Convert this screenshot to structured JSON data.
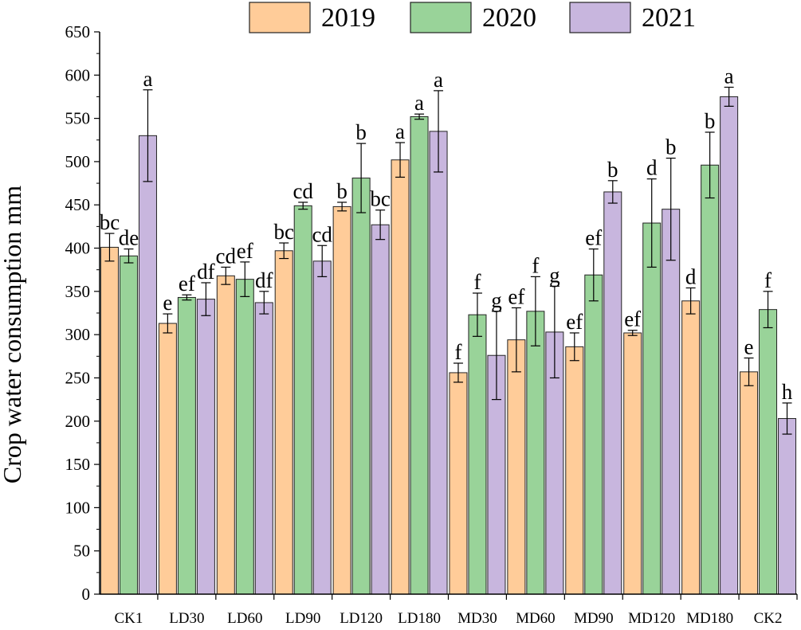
{
  "chart_data": {
    "type": "bar",
    "title": "",
    "xlabel": "",
    "ylabel": "Crop water consumption  mm",
    "ylim": [
      0,
      650
    ],
    "yticks": [
      0,
      50,
      100,
      150,
      200,
      250,
      300,
      350,
      400,
      450,
      500,
      550,
      600,
      650
    ],
    "categories": [
      "CK1",
      "LD30",
      "LD60",
      "LD90",
      "LD120",
      "LD180",
      "MD30",
      "MD60",
      "MD90",
      "MD120",
      "MD180",
      "CK2"
    ],
    "legend_position": "top",
    "series": [
      {
        "name": "2019",
        "color": "#FFCC99",
        "values": [
          401,
          313,
          368,
          397,
          448,
          502,
          256,
          294,
          286,
          302,
          339,
          257
        ],
        "errors": [
          16,
          11,
          10,
          9,
          5,
          20,
          11,
          37,
          16,
          3,
          15,
          16
        ],
        "letters": [
          "bc",
          "e",
          "cd",
          "bc",
          "b",
          "a",
          "f",
          "ef",
          "ef",
          "ef",
          "d",
          "e"
        ]
      },
      {
        "name": "2020",
        "color": "#99D399",
        "values": [
          391,
          343,
          364,
          449,
          481,
          552,
          323,
          327,
          369,
          429,
          496,
          329
        ],
        "errors": [
          8,
          3,
          20,
          4,
          40,
          3,
          25,
          40,
          30,
          51,
          38,
          21
        ],
        "letters": [
          "de",
          "ef",
          "ef",
          "cd",
          "b",
          "a",
          "f",
          "f",
          "ef",
          "d",
          "b",
          "f"
        ]
      },
      {
        "name": "2021",
        "color": "#C8B6DE",
        "values": [
          530,
          341,
          337,
          385,
          427,
          535,
          276,
          303,
          465,
          445,
          575,
          203
        ],
        "errors": [
          53,
          19,
          13,
          18,
          17,
          47,
          51,
          53,
          13,
          59,
          11,
          18
        ],
        "letters": [
          "a",
          "df",
          "df",
          "cd",
          "bc",
          "a",
          "g",
          "g",
          "b",
          "b",
          "a",
          "h"
        ]
      }
    ]
  }
}
